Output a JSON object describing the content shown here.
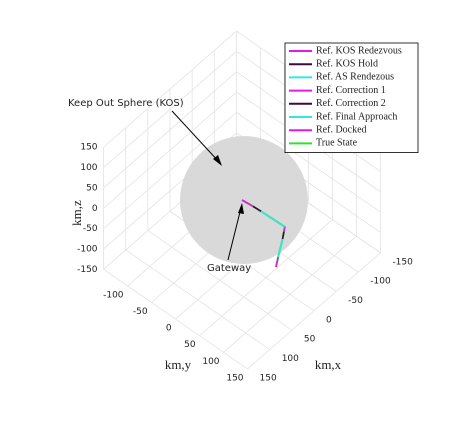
{
  "chart_data": {
    "type": "line3d",
    "xlabel": "km,x",
    "ylabel": "km,y",
    "zlabel": "km,z",
    "annotations": [
      {
        "text": "Keep Out Sphere (KOS)"
      },
      {
        "text": "Gateway"
      }
    ],
    "xlim": [
      -150,
      150
    ],
    "ylim": [
      -150,
      150
    ],
    "zlim": [
      -150,
      150
    ],
    "xticks": [
      -150,
      -100,
      -50,
      0,
      50,
      100,
      150
    ],
    "yticks": [
      -100,
      -50,
      0,
      50,
      100,
      150
    ],
    "zticks": [
      -150,
      -100,
      -50,
      0,
      50,
      100,
      150
    ],
    "grid": true,
    "legend": "northeast",
    "series": [
      {
        "name": "Ref. KOS Redezvous",
        "color": "#e619e6",
        "x": [
          0,
          -3
        ],
        "y": [
          0,
          20
        ],
        "z": [
          0,
          -2
        ]
      },
      {
        "name": "Ref. KOS Hold",
        "color": "#3d0a3d",
        "x": [
          -3,
          -5
        ],
        "y": [
          20,
          35
        ],
        "z": [
          -2,
          -4
        ]
      },
      {
        "name": "Ref. AS Rendezous",
        "color": "#33e6e6",
        "x": [
          -5,
          -10
        ],
        "y": [
          35,
          80
        ],
        "z": [
          -4,
          -10
        ]
      },
      {
        "name": "Ref. Correction 1",
        "color": "#e619e6",
        "x": [
          -10,
          -8
        ],
        "y": [
          80,
          80
        ],
        "z": [
          -10,
          -20
        ]
      },
      {
        "name": "Ref. Correction 2",
        "color": "#3d0a3d",
        "x": [
          -8,
          -5
        ],
        "y": [
          80,
          80
        ],
        "z": [
          -20,
          -35
        ]
      },
      {
        "name": "Ref. Final Approach",
        "color": "#33e6e6",
        "x": [
          -5,
          5
        ],
        "y": [
          80,
          80
        ],
        "z": [
          -35,
          -70
        ]
      },
      {
        "name": "Ref. Docked",
        "color": "#e619e6",
        "x": [
          5,
          10
        ],
        "y": [
          80,
          80
        ],
        "z": [
          -70,
          -90
        ]
      },
      {
        "name": "True State",
        "color": "#33dd33",
        "x": [
          0,
          -3,
          -5,
          -10,
          -8,
          -5,
          5,
          10
        ],
        "y": [
          0,
          20,
          35,
          80,
          80,
          80,
          80,
          80
        ],
        "z": [
          0,
          -2,
          -4,
          -10,
          -20,
          -35,
          -70,
          -90
        ]
      }
    ]
  }
}
